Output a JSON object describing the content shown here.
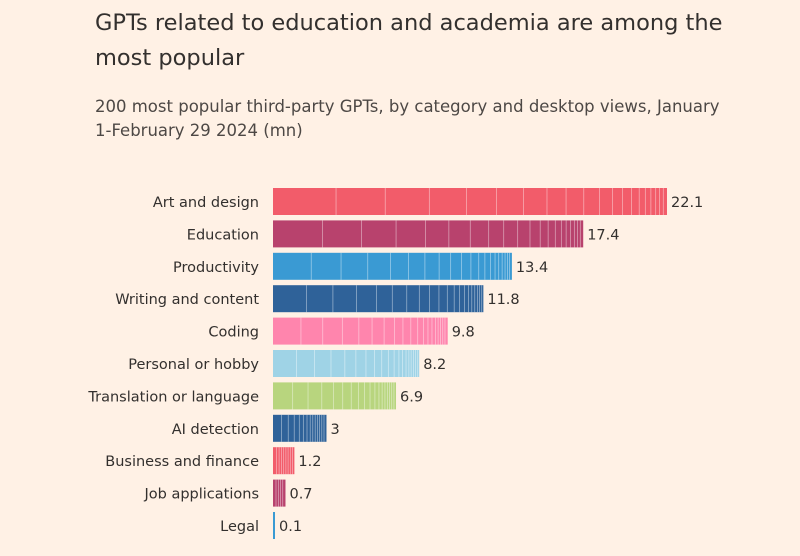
{
  "title": "GPTs related to education and academia are among the most popular",
  "subtitle": "200 most popular third-party GPTs, by category and desktop views, January 1-February 29 2024 (mn)",
  "colors": {
    "background": "#fff1e5",
    "text": "#33302e",
    "separator": "#ffffff"
  },
  "chart_data": {
    "type": "bar",
    "orientation": "horizontal",
    "title": "GPTs related to education and academia are among the most popular",
    "subtitle": "200 most popular third-party GPTs, by category and desktop views, January 1-February 29 2024 (mn)",
    "xlabel": "",
    "ylabel": "",
    "xlim": [
      0,
      22.1
    ],
    "grid": false,
    "categories": [
      "Art and design",
      "Education",
      "Productivity",
      "Writing and content",
      "Coding",
      "Personal or hobby",
      "Translation or language",
      "AI detection",
      "Business and finance",
      "Job applications",
      "Legal"
    ],
    "values": [
      22.1,
      17.4,
      13.4,
      11.8,
      9.8,
      8.2,
      6.9,
      3,
      1.2,
      0.7,
      0.1
    ],
    "value_labels": [
      "22.1",
      "17.4",
      "13.4",
      "11.8",
      "9.8",
      "8.2",
      "6.9",
      "3",
      "1.2",
      "0.7",
      "0.1"
    ],
    "bar_colors": [
      "#f25c6a",
      "#b8426d",
      "#3a9ad3",
      "#2f6299",
      "#ff85ad",
      "#9fd3e6",
      "#b8d57e",
      "#2f6299",
      "#f25c6a",
      "#b8426d",
      "#3a9ad3"
    ],
    "segment_separators": true
  }
}
